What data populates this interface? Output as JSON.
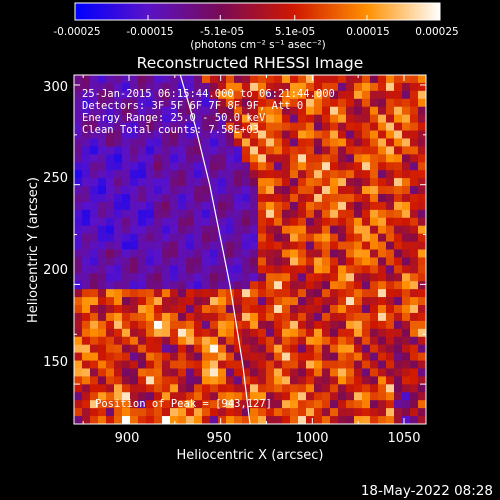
{
  "colorbar": {
    "colormap": "RHESSI red-temperature (blue-purple-red-orange-yellow-white)",
    "tick_labels": [
      "-0.00025",
      "-0.00015",
      "-5.1e-05",
      "5.1e-05",
      "0.00015",
      "0.00025"
    ],
    "tick_values": [
      -0.00025,
      -0.00015,
      -5.1e-05,
      5.1e-05,
      0.00015,
      0.00025
    ],
    "range": [
      -0.00025,
      0.00025
    ],
    "units_label": "(photons cm⁻² s⁻¹ asec⁻²)"
  },
  "chart_data": {
    "type": "heatmap",
    "title": "Reconstructed RHESSI Image",
    "xlabel": "Heliocentric X (arcsec)",
    "ylabel": "Heliocentric Y (arcsec)",
    "xlim": [
      870,
      1062
    ],
    "ylim": [
      130,
      305
    ],
    "x_ticks": [
      900,
      950,
      1000,
      1050
    ],
    "y_ticks": [
      150,
      200,
      250,
      300
    ],
    "annotations": [
      "25-Jan-2015 06:15:44.000 to 06:21:44.000",
      "Detectors: 3F 5F 6F 7F 8F 9F, Att 0",
      "Energy Range: 25.0 - 50.0 keV",
      "Clean     Total counts: 7.58E+03"
    ],
    "peak_label": "Position of Peak = [943,127]",
    "limb_curve": {
      "x": [
        966,
        962,
        955,
        944,
        936,
        928
      ],
      "y": [
        130,
        160,
        200,
        250,
        280,
        305
      ]
    },
    "grid": false
  },
  "footer": {
    "timestamp": "18-May-2022 08:28"
  }
}
